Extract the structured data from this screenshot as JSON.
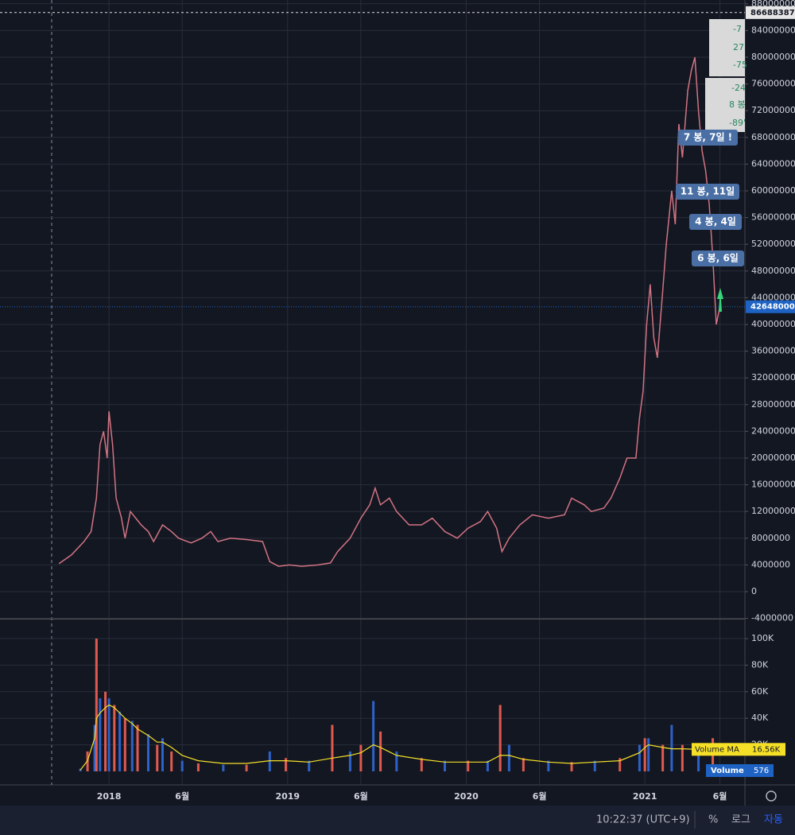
{
  "chart_data": [
    {
      "type": "line",
      "x": [
        2017.72,
        2017.79,
        2017.86,
        2017.9,
        2017.93,
        2017.95,
        2017.97,
        2017.99,
        2018.0,
        2018.02,
        2018.04,
        2018.07,
        2018.09,
        2018.12,
        2018.15,
        2018.18,
        2018.22,
        2018.25,
        2018.3,
        2018.35,
        2018.39,
        2018.46,
        2018.52,
        2018.57,
        2018.61,
        2018.68,
        2018.77,
        2018.86,
        2018.9,
        2018.95,
        2019.01,
        2019.08,
        2019.17,
        2019.24,
        2019.28,
        2019.35,
        2019.41,
        2019.46,
        2019.49,
        2019.52,
        2019.57,
        2019.61,
        2019.68,
        2019.75,
        2019.81,
        2019.88,
        2019.95,
        2020.01,
        2020.08,
        2020.12,
        2020.17,
        2020.2,
        2020.24,
        2020.3,
        2020.37,
        2020.46,
        2020.55,
        2020.59,
        2020.66,
        2020.7,
        2020.77,
        2020.81,
        2020.86,
        2020.9,
        2020.95,
        2020.97,
        2020.99,
        2021.01,
        2021.03,
        2021.05,
        2021.07,
        2021.1,
        2021.12,
        2021.15,
        2021.17,
        2021.19,
        2021.21,
        2021.24,
        2021.26,
        2021.28,
        2021.3,
        2021.32,
        2021.34,
        2021.36,
        2021.38,
        2021.4,
        2021.42
      ],
      "series": [
        {
          "color": "#d27382",
          "values": [
            4200000,
            5500000,
            7500000,
            9000000,
            14000000,
            22000000,
            24000000,
            20000000,
            27000000,
            22000000,
            14000000,
            11000000,
            8000000,
            12000000,
            11000000,
            10000000,
            9000000,
            7500000,
            10000000,
            9000000,
            8000000,
            7300000,
            8000000,
            9000000,
            7500000,
            8000000,
            7800000,
            7500000,
            4500000,
            3800000,
            4000000,
            3800000,
            4000000,
            4300000,
            6000000,
            8000000,
            11000000,
            13000000,
            15500000,
            13000000,
            14000000,
            12000000,
            10000000,
            10000000,
            11000000,
            9000000,
            8000000,
            9500000,
            10500000,
            12000000,
            9500000,
            6000000,
            8000000,
            10000000,
            11500000,
            11000000,
            11500000,
            14000000,
            13000000,
            12000000,
            12500000,
            14000000,
            17000000,
            20000000,
            20000000,
            26000000,
            30000000,
            40000000,
            46000000,
            38000000,
            35000000,
            45000000,
            52000000,
            60000000,
            55000000,
            70000000,
            65000000,
            75000000,
            78000000,
            80000000,
            72000000,
            66000000,
            63000000,
            58000000,
            50000000,
            40000000,
            42648000
          ]
        }
      ],
      "xlim": [
        2017.39,
        2021.56
      ],
      "ylim": [
        -3930000,
        88570000
      ],
      "yticks": [
        -4000000,
        0,
        4000000,
        8000000,
        12000000,
        16000000,
        20000000,
        24000000,
        28000000,
        32000000,
        36000000,
        40000000,
        44000000,
        48000000,
        52000000,
        56000000,
        60000000,
        64000000,
        68000000,
        72000000,
        76000000,
        80000000,
        84000000,
        88000000
      ],
      "high_line": 86688387,
      "last_price": 42648000,
      "last_price_color": "#1e63c4",
      "annotations": [
        "7 봉, 7일 !",
        "11 봉, 11일",
        "4 봉, 4일",
        "6 봉, 6일"
      ],
      "measure_texts": [
        "-7",
        "27",
        "-75",
        "-24",
        "8 봉",
        "-89'"
      ],
      "grid": true
    },
    {
      "type": "bar",
      "x": [
        2017.84,
        2017.88,
        2017.92,
        2017.93,
        2017.95,
        2017.98,
        2018.0,
        2018.03,
        2018.06,
        2018.09,
        2018.13,
        2018.16,
        2018.22,
        2018.27,
        2018.3,
        2018.35,
        2018.41,
        2018.5,
        2018.64,
        2018.77,
        2018.9,
        2018.99,
        2019.12,
        2019.25,
        2019.35,
        2019.41,
        2019.48,
        2019.52,
        2019.61,
        2019.75,
        2019.88,
        2020.01,
        2020.12,
        2020.19,
        2020.24,
        2020.32,
        2020.46,
        2020.59,
        2020.72,
        2020.86,
        2020.97,
        2021.0,
        2021.02,
        2021.1,
        2021.15,
        2021.21,
        2021.3,
        2021.38,
        2021.42
      ],
      "series": [
        {
          "name": "Volume",
          "colors": [
            "#2e62c8",
            "#e05a4f"
          ],
          "color": "#1e63c4",
          "values": [
            2000,
            15000,
            35000,
            100000,
            55000,
            60000,
            55000,
            50000,
            45000,
            40000,
            38000,
            35000,
            28000,
            20000,
            25000,
            15000,
            8000,
            6000,
            5000,
            5000,
            15000,
            10000,
            8000,
            35000,
            15000,
            20000,
            53000,
            30000,
            15000,
            10000,
            8000,
            8000,
            8000,
            50000,
            20000,
            10000,
            8000,
            7000,
            8000,
            10000,
            20000,
            25000,
            25000,
            20000,
            35000,
            20000,
            15000,
            25000,
            576
          ]
        },
        {
          "name": "Volume MA",
          "color": "#f5e027",
          "values": [
            1000,
            8000,
            25000,
            40000,
            44000,
            48000,
            50000,
            48000,
            44000,
            40000,
            36000,
            32000,
            27000,
            22000,
            22000,
            18000,
            12000,
            8000,
            6000,
            6000,
            8000,
            8000,
            7000,
            10000,
            12000,
            14000,
            20000,
            18000,
            12000,
            9000,
            7000,
            7000,
            7000,
            12000,
            12000,
            9000,
            7000,
            6000,
            7000,
            8000,
            14000,
            18000,
            20000,
            18000,
            17000,
            17000,
            16500,
            16560,
            16560
          ],
          "value_labels": [
            null,
            null,
            null,
            null,
            null,
            null,
            null,
            null,
            null,
            null,
            null,
            null,
            null,
            null,
            null,
            null,
            null,
            null,
            null,
            null,
            null,
            null,
            null,
            null,
            null,
            null,
            null,
            null,
            null,
            null,
            null,
            null,
            null,
            null,
            null,
            null,
            null,
            null,
            null,
            null,
            null,
            null,
            null,
            null,
            null,
            null,
            null,
            null,
            "16.56K"
          ]
        }
      ],
      "xlim": [
        2017.39,
        2021.56
      ],
      "xticks": [
        {
          "value": 2018,
          "label": "2018"
        },
        {
          "value": 2018.41,
          "label": "6월"
        },
        {
          "value": 2019,
          "label": "2019"
        },
        {
          "value": 2019.41,
          "label": "6월"
        },
        {
          "value": 2020,
          "label": "2020"
        },
        {
          "value": 2020.41,
          "label": "6월"
        },
        {
          "value": 2021,
          "label": "2021"
        },
        {
          "value": 2021.42,
          "label": "6월"
        }
      ],
      "ylim": [
        -10200,
        114400
      ],
      "yticks": [
        {
          "value": 20000,
          "label": "20K"
        },
        {
          "value": 40000,
          "label": "40K"
        },
        {
          "value": 60000,
          "label": "60K"
        },
        {
          "value": 80000,
          "label": "80K"
        },
        {
          "value": 100000,
          "label": "100K"
        }
      ],
      "grid": true
    }
  ],
  "status_bar": {
    "time": "10:22:37 (UTC+9)",
    "percent": "%",
    "log": "로그",
    "auto": "자동"
  }
}
